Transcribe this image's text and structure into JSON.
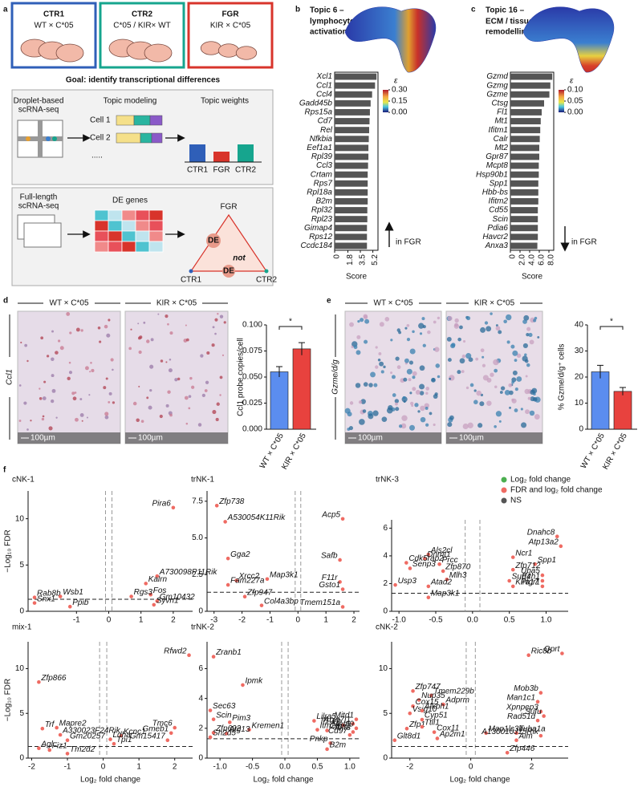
{
  "diagram": {
    "panel": "a",
    "groups": [
      {
        "name": "CTR1",
        "cross": "WT × C*05",
        "color": "#2f5fb8"
      },
      {
        "name": "CTR2",
        "cross": "C*05 / KIR× WT",
        "color": "#16a58e"
      },
      {
        "name": "FGR",
        "cross": "KIR × C*05",
        "color": "#d8342b"
      }
    ],
    "goal": "Goal: identify transcriptional differences",
    "droplet": {
      "label": [
        "Droplet-based",
        "scRNA-seq"
      ],
      "step": "Topic modeling",
      "weights": "Topic weights",
      "cells": [
        "Cell 1",
        "Cell 2"
      ],
      "more": ".....",
      "bars": [
        "CTR1",
        "FGR",
        "CTR2"
      ]
    },
    "fulllength": {
      "label": [
        "Full-length",
        "scRNA-seq"
      ],
      "step": "DE genes",
      "apex": "FGR",
      "de": "DE",
      "not": "not",
      "not_de": "DE",
      "corners": [
        "CTR1",
        "CTR2"
      ]
    }
  },
  "volcano_legend": [
    {
      "name": "Log₂ fold change",
      "color": "#4caf50"
    },
    {
      "name": "FDR and log₂ fold change",
      "color": "#ef6b63"
    },
    {
      "name": "NS",
      "color": "#555555"
    }
  ],
  "chart_data": [
    {
      "type": "hbar",
      "panel": "b",
      "title": "Topic 6 –",
      "subtitle": [
        "lymphocyte",
        "activation"
      ],
      "color": "#555555",
      "categories": [
        "Xcl1",
        "Ccl1",
        "Ccl4",
        "Gadd45b",
        "Rps15a",
        "Cd7",
        "Rel",
        "Nfkbia",
        "Eef1a1",
        "Rpl39",
        "Ccl3",
        "Crtam",
        "Rps7",
        "Rpl18a",
        "B2m",
        "Rpl32",
        "Rpl23",
        "Gimap4",
        "Rps12",
        "Ccdc184"
      ],
      "values": [
        5.7,
        5.5,
        5.1,
        4.9,
        4.8,
        4.75,
        4.7,
        4.65,
        4.6,
        4.6,
        4.55,
        4.5,
        4.5,
        4.5,
        4.5,
        4.45,
        4.45,
        4.4,
        4.4,
        4.4
      ],
      "xlim": [
        0,
        5.9
      ],
      "xticks": [
        0,
        1.8,
        3.5,
        5.2
      ],
      "xlabel": "Score",
      "annotation": "in FGR",
      "arrow": "up",
      "colorbar": {
        "label": "ε",
        "lim": [
          0,
          0.3
        ],
        "ticks": [
          {
            "value": 0.3,
            "label": "0.30"
          },
          0.15,
          {
            "value": 0,
            "label": "0.00"
          }
        ]
      }
    },
    {
      "type": "hbar",
      "panel": "c",
      "title": "Topic 16 –",
      "subtitle": [
        "ECM / tissue",
        "remodelling"
      ],
      "color": "#555555",
      "categories": [
        "Gzmd",
        "Gzmg",
        "Gzme",
        "Ctsg",
        "Fl1",
        "Mt1",
        "Ifitm1",
        "Calr",
        "Mt2",
        "Gpr87",
        "Mcpt8",
        "Hsp90b1",
        "Spp1",
        "Hbb-bs",
        "Ifitm2",
        "Cd55",
        "Scin",
        "Pdia6",
        "Havcr2",
        "Anxa3"
      ],
      "values": [
        8.7,
        8.3,
        8.1,
        7.0,
        6.5,
        6.3,
        6.2,
        6.1,
        6.0,
        6.0,
        5.9,
        5.9,
        5.8,
        5.8,
        5.8,
        5.7,
        5.7,
        5.7,
        5.7,
        5.6
      ],
      "xlim": [
        0,
        9
      ],
      "xticks": [
        0,
        {
          "value": 2,
          "label": "2.0"
        },
        {
          "value": 4,
          "label": "4.0"
        },
        {
          "value": 6,
          "label": "6.0"
        },
        {
          "value": 8,
          "label": "8.0"
        }
      ],
      "xlabel": "Score",
      "annotation": "in FGR",
      "arrow": "down",
      "colorbar": {
        "label": "ε",
        "lim": [
          0,
          0.1
        ],
        "ticks": [
          {
            "value": 0.1,
            "label": "0.10"
          },
          0.05,
          {
            "value": 0,
            "label": "0.00"
          }
        ]
      }
    },
    {
      "type": "bar",
      "panel": "d",
      "categories": [
        "WT × C*05",
        "KIR × C*05"
      ],
      "values": [
        0.055,
        0.077
      ],
      "errors": [
        0.005,
        0.006
      ],
      "colors": [
        "#5b8def",
        "#e8423e"
      ],
      "ylim": [
        0,
        0.1
      ],
      "yticks": [
        {
          "value": 0,
          "label": "0.000"
        },
        0.025,
        {
          "value": 0.05,
          "label": "0.050"
        },
        0.075,
        {
          "value": 0.1,
          "label": "0.100"
        }
      ],
      "ylabel": "Ccl1 probe copies/cell",
      "annotation": "*",
      "images": {
        "headers": [
          "WT × C*05",
          "KIR × C*05"
        ],
        "side_label": "Ccl1",
        "scale_bar": "100µm"
      }
    },
    {
      "type": "bar",
      "panel": "e",
      "categories": [
        "WT × C*05",
        "KIR × C*05"
      ],
      "values": [
        22,
        14.5
      ],
      "errors": [
        2.5,
        1.5
      ],
      "colors": [
        "#5b8def",
        "#e8423e"
      ],
      "ylim": [
        0,
        40
      ],
      "yticks": [
        0,
        10,
        20,
        30,
        40
      ],
      "ylabel": "% Gzme/d/g⁺ cells",
      "annotation": "*",
      "images": {
        "headers": [
          "WT × C*05",
          "KIR × C*05"
        ],
        "side_label": "Gzme/d/g",
        "scale_bar": "100µm"
      }
    },
    {
      "type": "volcano",
      "panel": "f",
      "title": "cNK-1",
      "ylabel": "−Log₁₀ FDR",
      "point_color": "#ef6b63",
      "xlim": [
        -2.5,
        2.6
      ],
      "ylim": [
        0,
        13
      ],
      "xticks": [
        -1,
        0,
        1,
        2
      ],
      "yticks": [
        0,
        5,
        10
      ],
      "hline": 1.3,
      "vlines": [
        -0.1,
        0.1
      ],
      "points": [
        {
          "label": "Pira6",
          "x": 2.0,
          "y": 11.2
        },
        {
          "label": "A730098P11Rik",
          "x": 1.5,
          "y": 3.8
        },
        {
          "label": "Kalrn",
          "x": 1.15,
          "y": 3.0
        },
        {
          "label": "Fos",
          "x": 1.3,
          "y": 1.8
        },
        {
          "label": "Rgs3",
          "x": 0.7,
          "y": 1.6
        },
        {
          "label": "Gm10432",
          "x": 1.5,
          "y": 1.1
        },
        {
          "label": "Syvn1",
          "x": 1.4,
          "y": 0.7
        },
        {
          "label": "Rab8b",
          "x": -2.3,
          "y": 1.5
        },
        {
          "label": "Wsb1",
          "x": -1.5,
          "y": 1.6
        },
        {
          "label": "Snx1",
          "x": -2.3,
          "y": 0.9
        },
        {
          "label": "Ppib",
          "x": -1.2,
          "y": 0.5
        }
      ]
    },
    {
      "type": "volcano",
      "title": "trNK-1",
      "point_color": "#ef6b63",
      "xlim": [
        -3.25,
        2.2
      ],
      "ylim": [
        0,
        8.2
      ],
      "xticks": [
        -3,
        -2,
        -1,
        0,
        1,
        2
      ],
      "yticks": [
        0,
        2.5,
        {
          "value": 5,
          "label": "5.0"
        },
        7.5
      ],
      "hline": 1.3,
      "vlines": [
        -0.1,
        0.1
      ],
      "points": [
        {
          "label": "Zfp738",
          "x": -2.9,
          "y": 7.2
        },
        {
          "label": "A530054K11Rik",
          "x": -2.6,
          "y": 6.1
        },
        {
          "label": "Acp5",
          "x": 1.6,
          "y": 6.3
        },
        {
          "label": "Gga2",
          "x": -2.5,
          "y": 3.6
        },
        {
          "label": "Safb",
          "x": 1.5,
          "y": 3.5
        },
        {
          "label": "Xrcc2",
          "x": -2.2,
          "y": 2.1
        },
        {
          "label": "Fam227a",
          "x": -2.5,
          "y": 1.8
        },
        {
          "label": "Map3k1",
          "x": -1.1,
          "y": 2.2
        },
        {
          "label": "F11r",
          "x": 1.5,
          "y": 2.0
        },
        {
          "label": "Gsto1",
          "x": 1.6,
          "y": 1.5
        },
        {
          "label": "Zfp947",
          "x": -1.9,
          "y": 1.0
        },
        {
          "label": "Col4a3bp",
          "x": -1.3,
          "y": 0.4
        },
        {
          "label": "Tmem151a",
          "x": 1.6,
          "y": 0.3
        }
      ]
    },
    {
      "type": "volcano",
      "title": "trNK-3",
      "point_color": "#ef6b63",
      "xlim": [
        -1.1,
        1.3
      ],
      "ylim": [
        0,
        6.6
      ],
      "xticks": [
        {
          "value": -1,
          "label": "-1.0"
        },
        -0.5,
        {
          "value": 0,
          "label": "0.0"
        },
        0.5,
        {
          "value": 1,
          "label": "1.0"
        }
      ],
      "yticks": [
        0,
        2,
        4,
        6
      ],
      "hline": 1.3,
      "vlines": [
        -0.1,
        0.1
      ],
      "points": [
        {
          "label": "Dnahc8",
          "x": 1.15,
          "y": 5.4
        },
        {
          "label": "Atp13a2",
          "x": 1.2,
          "y": 4.7
        },
        {
          "label": "Ncr1",
          "x": 0.55,
          "y": 3.9
        },
        {
          "label": "Spp1",
          "x": 0.85,
          "y": 3.4
        },
        {
          "label": "Als2cl",
          "x": -0.6,
          "y": 4.1
        },
        {
          "label": "Dnmt1",
          "x": -0.65,
          "y": 3.8
        },
        {
          "label": "Cdk5rap2",
          "x": -0.9,
          "y": 3.5
        },
        {
          "label": "Prcc",
          "x": -0.45,
          "y": 3.4
        },
        {
          "label": "Senp3",
          "x": -0.85,
          "y": 3.1
        },
        {
          "label": "Zfp712",
          "x": 0.55,
          "y": 3.0
        },
        {
          "label": "Zfp870",
          "x": -0.4,
          "y": 2.9
        },
        {
          "label": "Uba5",
          "x": 0.95,
          "y": 2.6
        },
        {
          "label": "Ezh1",
          "x": 0.95,
          "y": 2.2
        },
        {
          "label": "Mlh3",
          "x": -0.35,
          "y": 2.3
        },
        {
          "label": "Surf4",
          "x": 0.5,
          "y": 2.2
        },
        {
          "label": "Ptgr1",
          "x": 0.95,
          "y": 1.8
        },
        {
          "label": "Usp3",
          "x": -1.05,
          "y": 1.9
        },
        {
          "label": "Atad2",
          "x": -0.6,
          "y": 1.8
        },
        {
          "label": "Klra17",
          "x": 0.55,
          "y": 1.8
        },
        {
          "label": "Map3k1",
          "x": -0.6,
          "y": 1.0
        }
      ]
    },
    {
      "type": "volcano",
      "title": "mix-1",
      "xlabel": "Log₂ fold change",
      "ylabel": "−Log₁₀ FDR",
      "point_color": "#ef6b63",
      "xlim": [
        -2.1,
        2.5
      ],
      "ylim": [
        0,
        13
      ],
      "xticks": [
        -2,
        -1,
        0,
        1,
        2
      ],
      "yticks": [
        0,
        5,
        10
      ],
      "hline": 1.3,
      "vlines": [
        -0.1,
        0.1
      ],
      "points": [
        {
          "label": "Rfwd2",
          "x": 2.4,
          "y": 11.5
        },
        {
          "label": "Zfp866",
          "x": -1.8,
          "y": 8.5
        },
        {
          "label": "Mapre2",
          "x": -1.3,
          "y": 3.4
        },
        {
          "label": "Trf",
          "x": -1.7,
          "y": 3.3
        },
        {
          "label": "A330023F24Rik",
          "x": -1.2,
          "y": 2.6
        },
        {
          "label": "Kcnc1",
          "x": 0.5,
          "y": 2.5
        },
        {
          "label": "Tmc6",
          "x": 2.0,
          "y": 3.4
        },
        {
          "label": "Gmeb1",
          "x": 1.9,
          "y": 2.8
        },
        {
          "label": "Ldha",
          "x": 0.2,
          "y": 2.1
        },
        {
          "label": "Gm15417",
          "x": 1.8,
          "y": 2.0
        },
        {
          "label": "Gm20257",
          "x": -1.0,
          "y": 2.0
        },
        {
          "label": "Tpi1",
          "x": 0.3,
          "y": 1.6
        },
        {
          "label": "Agl",
          "x": -1.8,
          "y": 1.1
        },
        {
          "label": "Fiz1",
          "x": -1.5,
          "y": 0.9
        },
        {
          "label": "Tm2d2",
          "x": -1.0,
          "y": 0.5
        }
      ]
    },
    {
      "type": "volcano",
      "title": "trNK-2",
      "xlabel": "Log₂ fold change",
      "point_color": "#ef6b63",
      "xlim": [
        -1.2,
        1.15
      ],
      "ylim": [
        0,
        7.8
      ],
      "xticks": [
        {
          "value": -1,
          "label": "-1.0"
        },
        -0.5,
        {
          "value": 0,
          "label": "0.0"
        },
        0.5,
        {
          "value": 1,
          "label": "1.0"
        }
      ],
      "yticks": [
        0,
        2,
        4,
        6
      ],
      "hline": 1.3,
      "vlines": [
        -0.05,
        0.05
      ],
      "points": [
        {
          "label": "Zranb1",
          "x": -1.1,
          "y": 6.8
        },
        {
          "label": "Ipmk",
          "x": -0.65,
          "y": 4.9
        },
        {
          "label": "Sec63",
          "x": -1.15,
          "y": 3.2
        },
        {
          "label": "Mitd1",
          "x": 1.1,
          "y": 2.6
        },
        {
          "label": "Scin",
          "x": -1.1,
          "y": 2.6
        },
        {
          "label": "Pim3",
          "x": -0.85,
          "y": 2.4
        },
        {
          "label": "Lilra5",
          "x": 0.45,
          "y": 2.5
        },
        {
          "label": "Atxn7l1",
          "x": 1.05,
          "y": 2.3
        },
        {
          "label": "Il10rb",
          "x": 0.9,
          "y": 2.2
        },
        {
          "label": "Mettl9",
          "x": 1.1,
          "y": 2.0
        },
        {
          "label": "Kremen1",
          "x": -0.55,
          "y": 1.9
        },
        {
          "label": "Zfp692",
          "x": -1.1,
          "y": 1.7
        },
        {
          "label": "Atg13",
          "x": -0.9,
          "y": 1.65
        },
        {
          "label": "Itm2b",
          "x": 0.5,
          "y": 1.9
        },
        {
          "label": "Ctps2",
          "x": 0.65,
          "y": 1.85
        },
        {
          "label": "Akt3",
          "x": 1.05,
          "y": 1.75
        },
        {
          "label": "Cd97",
          "x": 1.0,
          "y": 1.55
        },
        {
          "label": "Sh2d5",
          "x": -1.15,
          "y": 1.4
        },
        {
          "label": "Pnkp",
          "x": 0.7,
          "y": 1.0
        },
        {
          "label": "B2m",
          "x": 0.65,
          "y": 0.6
        }
      ]
    },
    {
      "type": "volcano",
      "title": "cNK-2",
      "xlabel": "Log₂ fold change",
      "point_color": "#ef6b63",
      "xlim": [
        -2.6,
        3.2
      ],
      "ylim": [
        0,
        13
      ],
      "xticks": [
        -2,
        0,
        2
      ],
      "yticks": [
        0,
        5,
        10
      ],
      "hline": 1.3,
      "vlines": [
        -0.15,
        0.15
      ],
      "points": [
        {
          "label": "Ric8b",
          "x": 1.9,
          "y": 11.5
        },
        {
          "label": "Qprt",
          "x": 3.0,
          "y": 11.7
        },
        {
          "label": "Zfp747",
          "x": -1.9,
          "y": 7.5
        },
        {
          "label": "Tmem229b",
          "x": -1.3,
          "y": 7.0
        },
        {
          "label": "Nup35",
          "x": -1.7,
          "y": 6.5
        },
        {
          "label": "Mob3b",
          "x": 2.3,
          "y": 7.3
        },
        {
          "label": "Cox15",
          "x": -1.9,
          "y": 5.8
        },
        {
          "label": "Adprm",
          "x": -0.9,
          "y": 6.0
        },
        {
          "label": "Man1c1",
          "x": 2.2,
          "y": 6.3
        },
        {
          "label": "Vsig10",
          "x": -2.0,
          "y": 5.0
        },
        {
          "label": "Alkbh1",
          "x": -1.6,
          "y": 5.3
        },
        {
          "label": "Xpnpep3",
          "x": 2.3,
          "y": 5.2
        },
        {
          "label": "Sufu",
          "x": 2.4,
          "y": 4.7
        },
        {
          "label": "Cyp51",
          "x": -1.6,
          "y": 4.3
        },
        {
          "label": "Rad51d",
          "x": 2.2,
          "y": 4.2
        },
        {
          "label": "Zfp1",
          "x": -2.1,
          "y": 3.3
        },
        {
          "label": "Ttll1",
          "x": -1.6,
          "y": 3.5
        },
        {
          "label": "Cox11",
          "x": -1.2,
          "y": 2.9
        },
        {
          "label": "Map1lc3b",
          "x": 0.5,
          "y": 2.8
        },
        {
          "label": "Tuba1a",
          "x": 1.5,
          "y": 2.8
        },
        {
          "label": "A130010J15Rik",
          "x": 2.3,
          "y": 2.5
        },
        {
          "label": "Ap2m1",
          "x": -1.1,
          "y": 2.2
        },
        {
          "label": "Glt8d1",
          "x": -2.5,
          "y": 2.0
        },
        {
          "label": "Aim",
          "x": 1.5,
          "y": 2.0
        },
        {
          "label": "Zfp446",
          "x": 1.2,
          "y": 0.6
        }
      ]
    }
  ]
}
